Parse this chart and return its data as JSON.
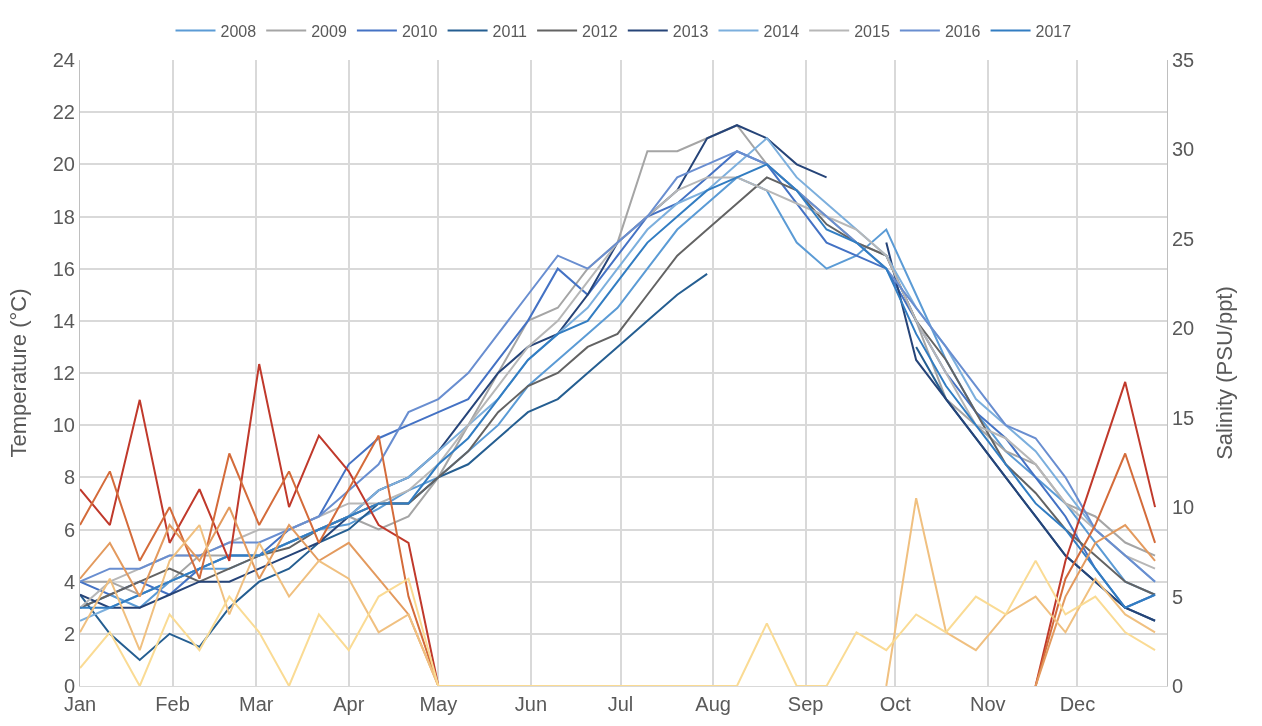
{
  "chart_data": {
    "type": "line",
    "ylabel": "Temperature (°C)",
    "y2label": "Salinity (PSU/ppt)",
    "x": [
      "--01-01",
      "--01-11",
      "--01-21",
      "--01-31",
      "--02-10",
      "--02-20",
      "--03-02",
      "--03-12",
      "--03-22",
      "--04-01",
      "--04-11",
      "--04-21",
      "--05-01",
      "--05-11",
      "--05-21",
      "--05-31",
      "--06-10",
      "--06-20",
      "--06-30",
      "--07-10",
      "--07-20",
      "--07-30",
      "--08-09",
      "--08-19",
      "--08-29",
      "--09-08",
      "--09-18",
      "--09-28",
      "--10-08",
      "--10-18",
      "--10-28",
      "--11-07",
      "--11-17",
      "--11-27",
      "--12-07",
      "--12-17",
      "--12-27"
    ],
    "xlim": [
      "--01-01",
      "--12-31"
    ],
    "xticks": [
      {
        "value": "--01-01",
        "label": "Jan"
      },
      {
        "value": "--02-01",
        "label": "Feb"
      },
      {
        "value": "--03-01",
        "label": "Mar"
      },
      {
        "value": "--04-01",
        "label": "Apr"
      },
      {
        "value": "--05-01",
        "label": "May"
      },
      {
        "value": "--06-01",
        "label": "Jun"
      },
      {
        "value": "--07-01",
        "label": "Jul"
      },
      {
        "value": "--08-01",
        "label": "Aug"
      },
      {
        "value": "--09-01",
        "label": "Sep"
      },
      {
        "value": "--10-01",
        "label": "Oct"
      },
      {
        "value": "--11-01",
        "label": "Nov"
      },
      {
        "value": "--12-01",
        "label": "Dec"
      }
    ],
    "ylim": [
      0,
      24
    ],
    "yticks": [
      0,
      2,
      4,
      6,
      8,
      10,
      12,
      14,
      16,
      18,
      20,
      22,
      24
    ],
    "y2lim": [
      0,
      35
    ],
    "y2ticks": [
      0,
      5,
      10,
      15,
      20,
      25,
      30,
      35
    ],
    "grid": true,
    "legend": "top",
    "line_style": "solid",
    "marker": "none",
    "series": [
      {
        "name": "2008",
        "color": "#5b9bd5",
        "values": [
          3,
          3.5,
          3,
          4,
          4.5,
          4.5,
          5,
          5.5,
          6,
          6.2,
          6.8,
          7.5,
          8,
          9,
          10,
          11.5,
          12.5,
          13.5,
          14.5,
          16,
          17.5,
          18.5,
          19.5,
          19,
          17,
          16,
          16.5,
          17.5,
          15,
          12.5,
          10.5,
          9,
          8,
          7,
          5.5,
          4,
          3.5
        ]
      },
      {
        "name": "2009",
        "color": "#a5a5a5",
        "values": [
          4,
          4,
          3.5,
          4,
          5,
          5,
          5,
          5.5,
          6,
          6.5,
          6,
          6.5,
          8,
          10,
          12,
          14,
          14.5,
          16,
          17,
          20.5,
          20.5,
          21,
          21.5,
          20,
          19,
          18,
          17,
          16.5,
          14,
          11,
          10,
          9,
          8.5,
          7,
          6.5,
          5.5,
          5
        ]
      },
      {
        "name": "2010",
        "color": "#4472c4",
        "values": [
          4,
          3.5,
          4,
          3.5,
          4.5,
          5,
          5,
          6,
          6.5,
          8.5,
          9.5,
          10,
          10.5,
          11,
          12.5,
          14,
          16,
          15,
          16.5,
          18,
          18.5,
          19.5,
          20.5,
          20,
          18.5,
          17,
          16.5,
          16,
          14,
          12,
          10.5,
          9.5,
          8,
          6.5,
          4.5,
          3,
          3.5
        ]
      },
      {
        "name": "2011",
        "color": "#255e91",
        "values": [
          3.5,
          2,
          1,
          2,
          1.5,
          3,
          4,
          4.5,
          5.5,
          6,
          7,
          7,
          8,
          8.5,
          9.5,
          10.5,
          11,
          12,
          13,
          14,
          15,
          15.8,
          null,
          null,
          null,
          null,
          null,
          null,
          13,
          11,
          9.5,
          8,
          6.5,
          5,
          4,
          3,
          2.5
        ]
      },
      {
        "name": "2012",
        "color": "#636363",
        "values": [
          3,
          3.5,
          4,
          4.5,
          4,
          4.5,
          5,
          5.3,
          6,
          6.5,
          7,
          7,
          8,
          9,
          10.5,
          11.5,
          12,
          13,
          13.5,
          15,
          16.5,
          17.5,
          18.5,
          19.5,
          19,
          17.7,
          17,
          16.5,
          14,
          12.5,
          10.5,
          8.5,
          7.4,
          6,
          5,
          4,
          3.5
        ]
      },
      {
        "name": "2013",
        "color": "#264478",
        "values": [
          3.5,
          3,
          3,
          3.5,
          4,
          4,
          4.5,
          5,
          5.5,
          6.5,
          7.5,
          8,
          9,
          10.5,
          12,
          13,
          13.5,
          15,
          17,
          18,
          19,
          21,
          21.5,
          21,
          20,
          19.5,
          null,
          17,
          12.5,
          11,
          9.5,
          8,
          6.5,
          5,
          4,
          3,
          2.5
        ]
      },
      {
        "name": "2014",
        "color": "#7cafdd",
        "values": [
          2.5,
          3,
          3.5,
          4,
          4.5,
          5,
          5,
          5.5,
          6,
          6.5,
          7.5,
          8,
          9,
          10,
          11,
          12.5,
          13.5,
          14.5,
          16,
          17.5,
          18.5,
          19,
          20,
          21,
          19.5,
          18.5,
          17.5,
          16.5,
          14.5,
          13,
          11,
          10,
          9,
          7.5,
          6,
          5,
          4
        ]
      },
      {
        "name": "2015",
        "color": "#b7b7b7",
        "values": [
          3,
          4,
          4.5,
          5,
          5,
          5.5,
          6,
          6,
          6.5,
          7,
          7,
          7.5,
          8.5,
          10,
          11.5,
          13,
          14,
          15.5,
          17,
          18,
          19,
          19.5,
          19.5,
          19,
          18.5,
          18,
          17.5,
          16.5,
          14,
          12,
          10,
          9.5,
          8.5,
          7,
          6,
          5,
          4.5
        ]
      },
      {
        "name": "2016",
        "color": "#698ed0",
        "values": [
          4,
          4.5,
          4.5,
          5,
          5,
          5.5,
          5.5,
          6,
          6.5,
          7.5,
          8.5,
          10.5,
          11,
          12,
          13.5,
          15,
          16.5,
          16,
          17,
          18,
          19.5,
          20,
          20.5,
          20,
          19,
          18,
          17,
          16,
          14.5,
          13,
          11.5,
          10,
          9.5,
          8,
          6,
          5,
          4
        ]
      },
      {
        "name": "2017",
        "color": "#327dc2",
        "values": [
          3,
          3,
          3.5,
          4,
          4.5,
          5,
          5,
          5.5,
          6,
          6.5,
          7,
          7,
          8.5,
          9.5,
          11,
          12.5,
          13.5,
          14,
          15.5,
          17,
          18,
          19,
          19.5,
          20,
          19,
          17.5,
          17,
          16,
          13.5,
          11.5,
          10,
          8.5,
          7,
          6,
          4.5,
          3,
          3.5
        ]
      },
      {
        "axis": "y2",
        "color": "#c0392b",
        "values": [
          11,
          9,
          16,
          8,
          11,
          7,
          18,
          10,
          14,
          12,
          9,
          8,
          0,
          null,
          null,
          null,
          null,
          null,
          null,
          null,
          null,
          null,
          null,
          null,
          null,
          null,
          null,
          null,
          null,
          null,
          null,
          null,
          0,
          7,
          12,
          17,
          10
        ]
      },
      {
        "axis": "y2",
        "color": "#d46b3a",
        "values": [
          9,
          12,
          7,
          10,
          6,
          13,
          9,
          12,
          8,
          11,
          14,
          5,
          0,
          null,
          null,
          null,
          null,
          null,
          null,
          null,
          null,
          null,
          null,
          null,
          null,
          null,
          null,
          null,
          null,
          null,
          null,
          null,
          0,
          6,
          9,
          13,
          8
        ]
      },
      {
        "axis": "y2",
        "color": "#e39a5e",
        "values": [
          6,
          8,
          5,
          9,
          7,
          10,
          6,
          9,
          7,
          8,
          6,
          4,
          0,
          null,
          null,
          null,
          null,
          null,
          null,
          null,
          null,
          null,
          null,
          null,
          null,
          null,
          null,
          null,
          null,
          null,
          null,
          null,
          0,
          5,
          8,
          9,
          7
        ]
      },
      {
        "axis": "y2",
        "color": "#f0c080",
        "values": [
          3,
          6,
          2,
          7,
          9,
          4,
          8,
          5,
          7,
          6,
          3,
          4,
          0,
          null,
          null,
          null,
          null,
          null,
          null,
          null,
          null,
          null,
          null,
          null,
          null,
          null,
          null,
          0,
          10.5,
          3,
          2,
          4,
          5,
          3,
          6,
          4,
          3
        ]
      },
      {
        "axis": "y2",
        "color": "#fadb94",
        "values": [
          1,
          3,
          0,
          4,
          2,
          5,
          3,
          0,
          4,
          2,
          5,
          6,
          0,
          0,
          0,
          0,
          0,
          0,
          0,
          0,
          0,
          0,
          0,
          3.5,
          0,
          0,
          3,
          2,
          4,
          3,
          5,
          4,
          7,
          4,
          5,
          3,
          2
        ]
      }
    ]
  }
}
